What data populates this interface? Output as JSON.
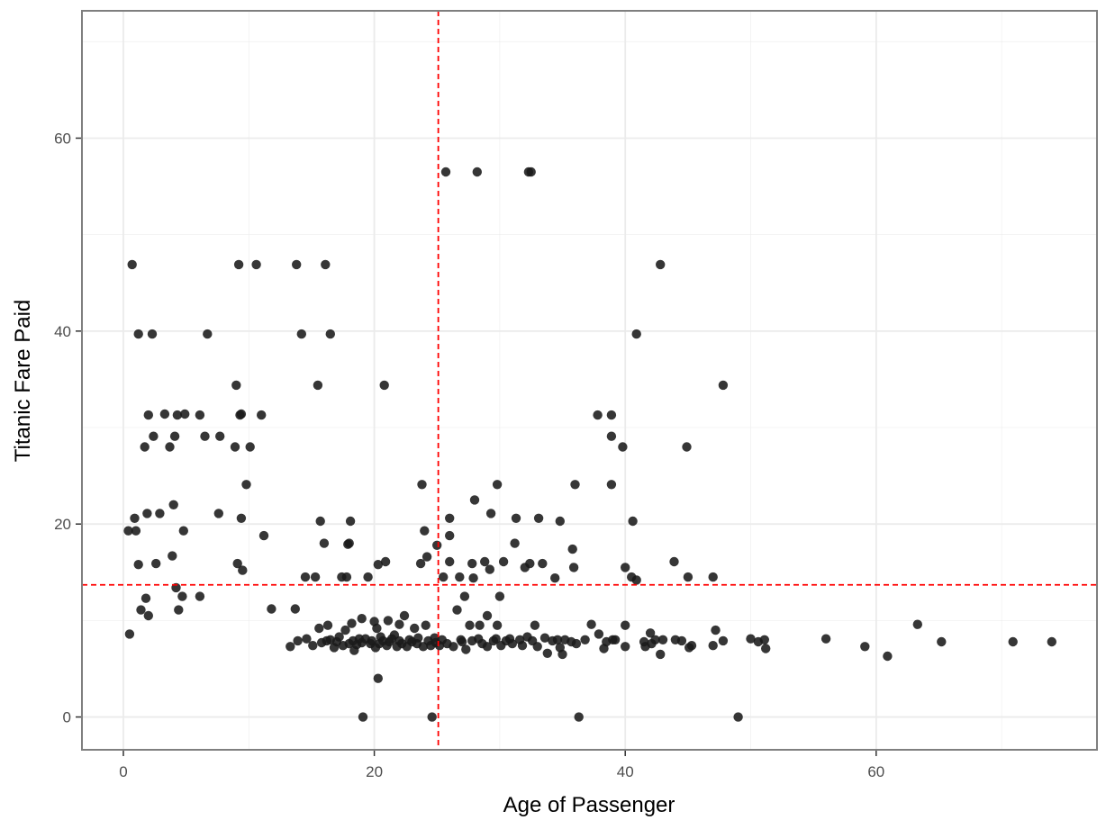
{
  "chart_data": {
    "type": "scatter",
    "title": "",
    "xlabel": "Age of Passenger",
    "ylabel": "Titanic Fare Paid",
    "xlim": [
      -3.3,
      77.6
    ],
    "ylim": [
      -3.4,
      73.2
    ],
    "x_ticks": [
      0,
      20,
      40,
      60
    ],
    "y_ticks": [
      0,
      20,
      40,
      60
    ],
    "x_tick_labels": [
      "0",
      "20",
      "40",
      "60"
    ],
    "y_tick_labels": [
      "0",
      "20",
      "40",
      "60"
    ],
    "grid": true,
    "legend": "none",
    "colors": {
      "points": "#1a1a1a",
      "reference_lines": "#ff0000",
      "grid": "#ebebeb",
      "panel_border": "#7f7f7f",
      "background": "#ffffff"
    },
    "reference_lines": {
      "vertical_x": 25.1,
      "horizontal_y": 13.7,
      "style": "dashed"
    },
    "points": [
      [
        0.4,
        19.3
      ],
      [
        0.5,
        8.6
      ],
      [
        0.7,
        46.9
      ],
      [
        0.9,
        20.6
      ],
      [
        1.0,
        19.3
      ],
      [
        1.2,
        15.8
      ],
      [
        1.2,
        39.7
      ],
      [
        1.4,
        11.1
      ],
      [
        1.7,
        28.0
      ],
      [
        1.8,
        12.3
      ],
      [
        1.9,
        21.1
      ],
      [
        2.0,
        10.5
      ],
      [
        2.0,
        31.3
      ],
      [
        2.3,
        39.7
      ],
      [
        2.4,
        29.1
      ],
      [
        2.6,
        15.9
      ],
      [
        2.9,
        21.1
      ],
      [
        3.3,
        31.4
      ],
      [
        3.7,
        28.0
      ],
      [
        3.9,
        16.7
      ],
      [
        4.0,
        22.0
      ],
      [
        4.1,
        29.1
      ],
      [
        4.2,
        13.4
      ],
      [
        4.3,
        31.3
      ],
      [
        4.4,
        11.1
      ],
      [
        4.7,
        12.5
      ],
      [
        4.8,
        19.3
      ],
      [
        4.9,
        31.4
      ],
      [
        6.1,
        12.5
      ],
      [
        6.1,
        31.3
      ],
      [
        6.5,
        29.1
      ],
      [
        6.7,
        39.7
      ],
      [
        7.6,
        21.1
      ],
      [
        7.7,
        29.1
      ],
      [
        8.9,
        28.0
      ],
      [
        9.0,
        34.4
      ],
      [
        9.1,
        15.9
      ],
      [
        9.2,
        46.9
      ],
      [
        9.3,
        31.3
      ],
      [
        9.4,
        20.6
      ],
      [
        9.4,
        31.4
      ],
      [
        9.5,
        15.2
      ],
      [
        9.8,
        24.1
      ],
      [
        10.1,
        28.0
      ],
      [
        10.6,
        46.9
      ],
      [
        11.0,
        31.3
      ],
      [
        11.2,
        18.8
      ],
      [
        11.8,
        11.2
      ],
      [
        13.3,
        7.3
      ],
      [
        13.7,
        11.2
      ],
      [
        13.9,
        7.9
      ],
      [
        13.8,
        46.9
      ],
      [
        14.2,
        39.7
      ],
      [
        14.5,
        14.5
      ],
      [
        14.6,
        8.1
      ],
      [
        15.1,
        7.4
      ],
      [
        15.3,
        14.5
      ],
      [
        15.5,
        34.4
      ],
      [
        15.6,
        9.2
      ],
      [
        15.7,
        20.3
      ],
      [
        15.8,
        7.7
      ],
      [
        16.0,
        18.0
      ],
      [
        16.1,
        46.9
      ],
      [
        16.2,
        7.9
      ],
      [
        16.3,
        9.5
      ],
      [
        16.5,
        39.7
      ],
      [
        16.5,
        8.0
      ],
      [
        16.8,
        7.2
      ],
      [
        17.0,
        7.8
      ],
      [
        17.2,
        8.3
      ],
      [
        17.4,
        14.5
      ],
      [
        17.5,
        7.4
      ],
      [
        17.7,
        9.0
      ],
      [
        17.8,
        14.5
      ],
      [
        17.9,
        17.9
      ],
      [
        18.0,
        18.0
      ],
      [
        18.0,
        7.6
      ],
      [
        18.1,
        20.3
      ],
      [
        18.2,
        9.7
      ],
      [
        18.3,
        7.9
      ],
      [
        18.4,
        6.9
      ],
      [
        18.6,
        7.5
      ],
      [
        18.8,
        8.1
      ],
      [
        19.0,
        7.7
      ],
      [
        19.0,
        10.2
      ],
      [
        19.1,
        0.0
      ],
      [
        19.3,
        8.1
      ],
      [
        19.5,
        14.5
      ],
      [
        19.7,
        7.6
      ],
      [
        19.8,
        7.9
      ],
      [
        20.0,
        9.9
      ],
      [
        20.1,
        7.2
      ],
      [
        20.2,
        9.2
      ],
      [
        20.3,
        15.8
      ],
      [
        20.3,
        4.0
      ],
      [
        20.4,
        7.6
      ],
      [
        20.5,
        8.3
      ],
      [
        20.7,
        7.9
      ],
      [
        20.8,
        34.4
      ],
      [
        20.9,
        16.1
      ],
      [
        21.0,
        7.4
      ],
      [
        21.1,
        10.0
      ],
      [
        21.2,
        7.8
      ],
      [
        21.4,
        8.1
      ],
      [
        21.6,
        8.5
      ],
      [
        21.8,
        7.3
      ],
      [
        22.0,
        7.9
      ],
      [
        22.0,
        9.6
      ],
      [
        22.2,
        7.6
      ],
      [
        22.4,
        10.5
      ],
      [
        22.6,
        7.3
      ],
      [
        22.8,
        8.0
      ],
      [
        23.0,
        7.8
      ],
      [
        23.2,
        9.2
      ],
      [
        23.4,
        7.6
      ],
      [
        23.5,
        8.2
      ],
      [
        23.7,
        15.9
      ],
      [
        23.8,
        24.1
      ],
      [
        23.9,
        7.3
      ],
      [
        24.0,
        19.3
      ],
      [
        24.1,
        9.5
      ],
      [
        24.2,
        16.6
      ],
      [
        24.3,
        7.9
      ],
      [
        24.5,
        7.4
      ],
      [
        24.6,
        0.0
      ],
      [
        24.8,
        8.2
      ],
      [
        24.9,
        7.7
      ],
      [
        25.0,
        17.8
      ],
      [
        25.2,
        7.4
      ],
      [
        25.4,
        8.0
      ],
      [
        25.5,
        14.5
      ],
      [
        25.7,
        56.5
      ],
      [
        25.8,
        7.6
      ],
      [
        26.0,
        16.1
      ],
      [
        26.0,
        18.8
      ],
      [
        26.0,
        20.6
      ],
      [
        26.3,
        7.3
      ],
      [
        26.6,
        11.1
      ],
      [
        26.8,
        14.5
      ],
      [
        26.9,
        8.0
      ],
      [
        27.0,
        7.8
      ],
      [
        27.2,
        12.5
      ],
      [
        27.3,
        7.0
      ],
      [
        27.6,
        9.5
      ],
      [
        27.8,
        15.9
      ],
      [
        27.8,
        7.9
      ],
      [
        27.9,
        14.4
      ],
      [
        28.0,
        22.5
      ],
      [
        28.2,
        56.5
      ],
      [
        28.3,
        8.1
      ],
      [
        28.4,
        9.5
      ],
      [
        28.6,
        7.6
      ],
      [
        28.8,
        16.1
      ],
      [
        29.0,
        7.3
      ],
      [
        29.0,
        10.5
      ],
      [
        29.2,
        15.3
      ],
      [
        29.3,
        21.1
      ],
      [
        29.5,
        7.9
      ],
      [
        29.7,
        8.1
      ],
      [
        29.8,
        9.5
      ],
      [
        29.8,
        24.1
      ],
      [
        30.0,
        12.5
      ],
      [
        30.1,
        7.4
      ],
      [
        30.3,
        16.1
      ],
      [
        30.5,
        7.9
      ],
      [
        30.8,
        8.1
      ],
      [
        31.0,
        7.6
      ],
      [
        31.2,
        18.0
      ],
      [
        31.3,
        20.6
      ],
      [
        31.6,
        8.0
      ],
      [
        31.8,
        7.4
      ],
      [
        32.0,
        15.5
      ],
      [
        32.2,
        8.3
      ],
      [
        32.3,
        56.5
      ],
      [
        32.4,
        15.9
      ],
      [
        32.5,
        56.5
      ],
      [
        32.6,
        7.9
      ],
      [
        32.8,
        9.5
      ],
      [
        33.0,
        7.3
      ],
      [
        33.1,
        20.6
      ],
      [
        33.4,
        15.9
      ],
      [
        33.6,
        8.2
      ],
      [
        33.8,
        6.6
      ],
      [
        34.2,
        7.9
      ],
      [
        34.4,
        14.4
      ],
      [
        34.6,
        8.0
      ],
      [
        34.8,
        20.3
      ],
      [
        34.8,
        7.2
      ],
      [
        35.0,
        6.5
      ],
      [
        35.2,
        8.0
      ],
      [
        35.7,
        7.8
      ],
      [
        35.8,
        17.4
      ],
      [
        35.9,
        15.5
      ],
      [
        36.0,
        24.1
      ],
      [
        36.1,
        7.6
      ],
      [
        36.3,
        0.0
      ],
      [
        36.8,
        8.0
      ],
      [
        37.3,
        9.6
      ],
      [
        37.8,
        31.3
      ],
      [
        37.9,
        8.6
      ],
      [
        38.3,
        7.1
      ],
      [
        38.5,
        7.8
      ],
      [
        38.9,
        31.3
      ],
      [
        38.9,
        29.1
      ],
      [
        38.9,
        24.1
      ],
      [
        39.0,
        8.0
      ],
      [
        39.2,
        8.0
      ],
      [
        39.8,
        28.0
      ],
      [
        40.0,
        15.5
      ],
      [
        40.0,
        7.3
      ],
      [
        40.0,
        9.5
      ],
      [
        40.5,
        14.5
      ],
      [
        40.6,
        20.3
      ],
      [
        40.9,
        39.7
      ],
      [
        40.9,
        14.2
      ],
      [
        41.5,
        7.8
      ],
      [
        41.6,
        7.3
      ],
      [
        42.0,
        8.7
      ],
      [
        42.1,
        7.6
      ],
      [
        42.4,
        8.0
      ],
      [
        42.8,
        6.5
      ],
      [
        42.8,
        46.9
      ],
      [
        43.0,
        8.0
      ],
      [
        43.9,
        16.1
      ],
      [
        44.0,
        8.0
      ],
      [
        44.5,
        7.9
      ],
      [
        44.9,
        28.0
      ],
      [
        45.0,
        14.5
      ],
      [
        45.1,
        7.2
      ],
      [
        45.3,
        7.4
      ],
      [
        47.0,
        7.4
      ],
      [
        47.0,
        14.5
      ],
      [
        47.2,
        9.0
      ],
      [
        47.8,
        7.9
      ],
      [
        47.8,
        34.4
      ],
      [
        49.0,
        0.0
      ],
      [
        50.0,
        8.1
      ],
      [
        50.6,
        7.8
      ],
      [
        51.1,
        8.0
      ],
      [
        51.2,
        7.1
      ],
      [
        56.0,
        8.1
      ],
      [
        59.1,
        7.3
      ],
      [
        60.9,
        6.3
      ],
      [
        63.3,
        9.6
      ],
      [
        65.2,
        7.8
      ],
      [
        70.9,
        7.8
      ],
      [
        74.0,
        7.8
      ]
    ]
  }
}
